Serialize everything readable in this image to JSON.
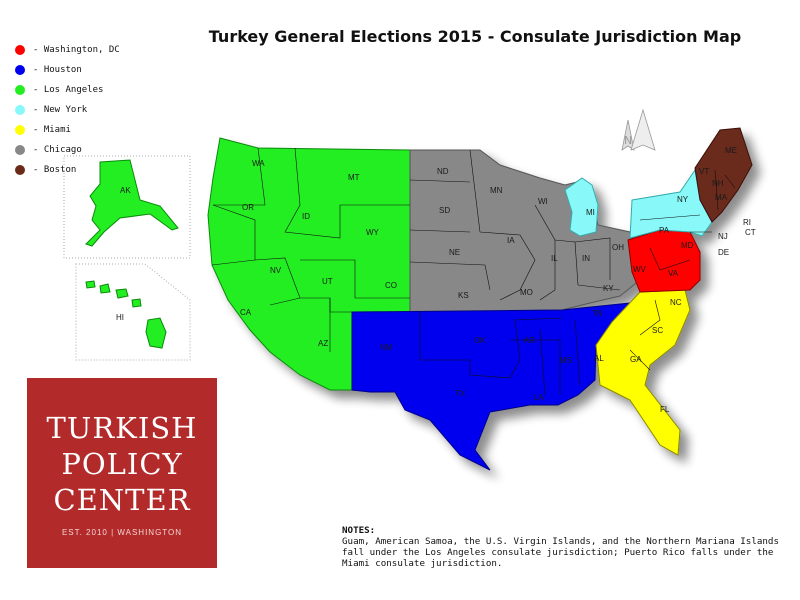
{
  "title": "Turkey General Elections 2015 - Consulate Jurisdiction Map",
  "legend": [
    {
      "label": "- Washington, DC",
      "color": "#ff0000"
    },
    {
      "label": "- Houston",
      "color": "#0000ee"
    },
    {
      "label": "- Los Angeles",
      "color": "#22ee22"
    },
    {
      "label": "- New York",
      "color": "#88f8f8"
    },
    {
      "label": "- Miami",
      "color": "#ffff00"
    },
    {
      "label": "- Chicago",
      "color": "#888888"
    },
    {
      "label": "- Boston",
      "color": "#6a2a1a"
    }
  ],
  "compass_label": "N",
  "states": {
    "wa": "WA",
    "or": "OR",
    "ca": "CA",
    "id": "ID",
    "nv": "NV",
    "mt": "MT",
    "wy": "WY",
    "ut": "UT",
    "co": "CO",
    "az": "AZ",
    "ak": "AK",
    "hi": "HI",
    "nm": "NM",
    "tx": "TX",
    "ok": "OK",
    "ar": "AR",
    "la": "LA",
    "ms": "MS",
    "al": "AL",
    "tn": "TN",
    "nd": "ND",
    "sd": "SD",
    "ne": "NE",
    "ks": "KS",
    "mn": "MN",
    "ia": "IA",
    "mo": "MO",
    "wi": "WI",
    "il": "IL",
    "in": "IN",
    "oh": "OH",
    "ky": "KY",
    "mi": "MI",
    "ny": "NY",
    "pa": "PA",
    "nj": "NJ",
    "fl": "FL",
    "ga": "GA",
    "sc": "SC",
    "nc": "NC",
    "va": "VA",
    "wv": "WV",
    "md": "MD",
    "de": "DE",
    "me": "ME",
    "nh": "NH",
    "vt": "VT",
    "ma": "MA",
    "ri": "RI",
    "ct": "CT"
  },
  "logo": {
    "line1": "TURKISH",
    "line2": "POLICY",
    "line3": "CENTER",
    "sub": "EST. 2010 | WASHINGTON"
  },
  "notes": {
    "title": "NOTES:",
    "text": "Guam, American Samoa, the U.S. Virgin Islands, and the Northern Mariana Islands fall under the Los Angeles consulate jurisdiction; Puerto Rico falls under the Miami consulate jurisdiction."
  }
}
